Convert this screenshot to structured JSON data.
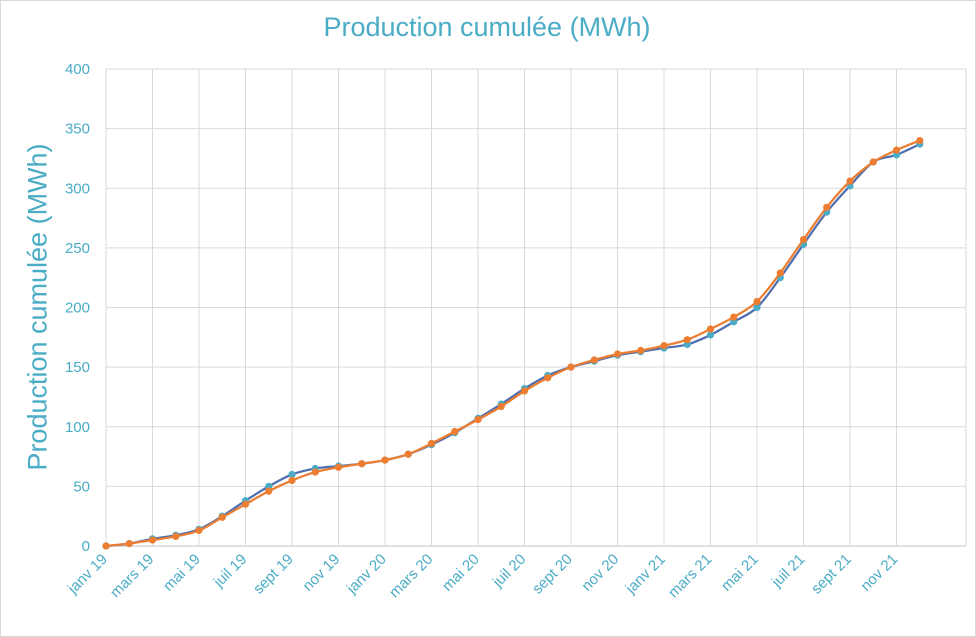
{
  "chart_data": {
    "type": "line",
    "title": "Production cumulée (MWh)",
    "xlabel": "",
    "ylabel": "Production cumulée (MWh)",
    "ylim": [
      0,
      400
    ],
    "yticks": [
      0,
      50,
      100,
      150,
      200,
      250,
      300,
      350,
      400
    ],
    "grid": true,
    "legend": "none",
    "categories": [
      "janv 19",
      "févr 19",
      "mars 19",
      "avr 19",
      "mai 19",
      "juin 19",
      "juil 19",
      "août 19",
      "sept 19",
      "oct 19",
      "nov 19",
      "déc 19",
      "janv 20",
      "févr 20",
      "mars 20",
      "avr 20",
      "mai 20",
      "juin 20",
      "juil 20",
      "août 20",
      "sept 20",
      "oct 20",
      "nov 20",
      "déc 20",
      "janv 21",
      "févr 21",
      "mars 21",
      "avr 21",
      "mai 21",
      "juin 21",
      "juil 21",
      "août 21",
      "sept 21",
      "oct 21",
      "nov 21",
      "déc 21"
    ],
    "tick_labels": [
      "janv 19",
      "mars 19",
      "mai 19",
      "juil 19",
      "sept 19",
      "nov 19",
      "janv 20",
      "mars 20",
      "mai 20",
      "juil 20",
      "sept 20",
      "nov 20",
      "janv 21",
      "mars 21",
      "mai 21",
      "juil 21",
      "sept 21",
      "nov 21"
    ],
    "series": [
      {
        "color": "#4bacc6",
        "line_color": "#4f6fb0",
        "values": [
          0,
          2,
          6,
          9,
          14,
          25,
          38,
          50,
          60,
          65,
          67,
          69,
          72,
          77,
          85,
          95,
          107,
          119,
          132,
          143,
          150,
          155,
          160,
          163,
          166,
          169,
          177,
          188,
          200,
          225,
          253,
          280,
          302,
          322,
          328,
          337
        ]
      },
      {
        "color": "#ed7d31",
        "line_color": "#ed7d31",
        "values": [
          0,
          2,
          5,
          8,
          13,
          24,
          35,
          46,
          55,
          62,
          66,
          69,
          72,
          77,
          86,
          96,
          106,
          117,
          130,
          141,
          150,
          156,
          161,
          164,
          168,
          173,
          182,
          192,
          205,
          229,
          257,
          284,
          306,
          322,
          332,
          340
        ]
      }
    ]
  }
}
